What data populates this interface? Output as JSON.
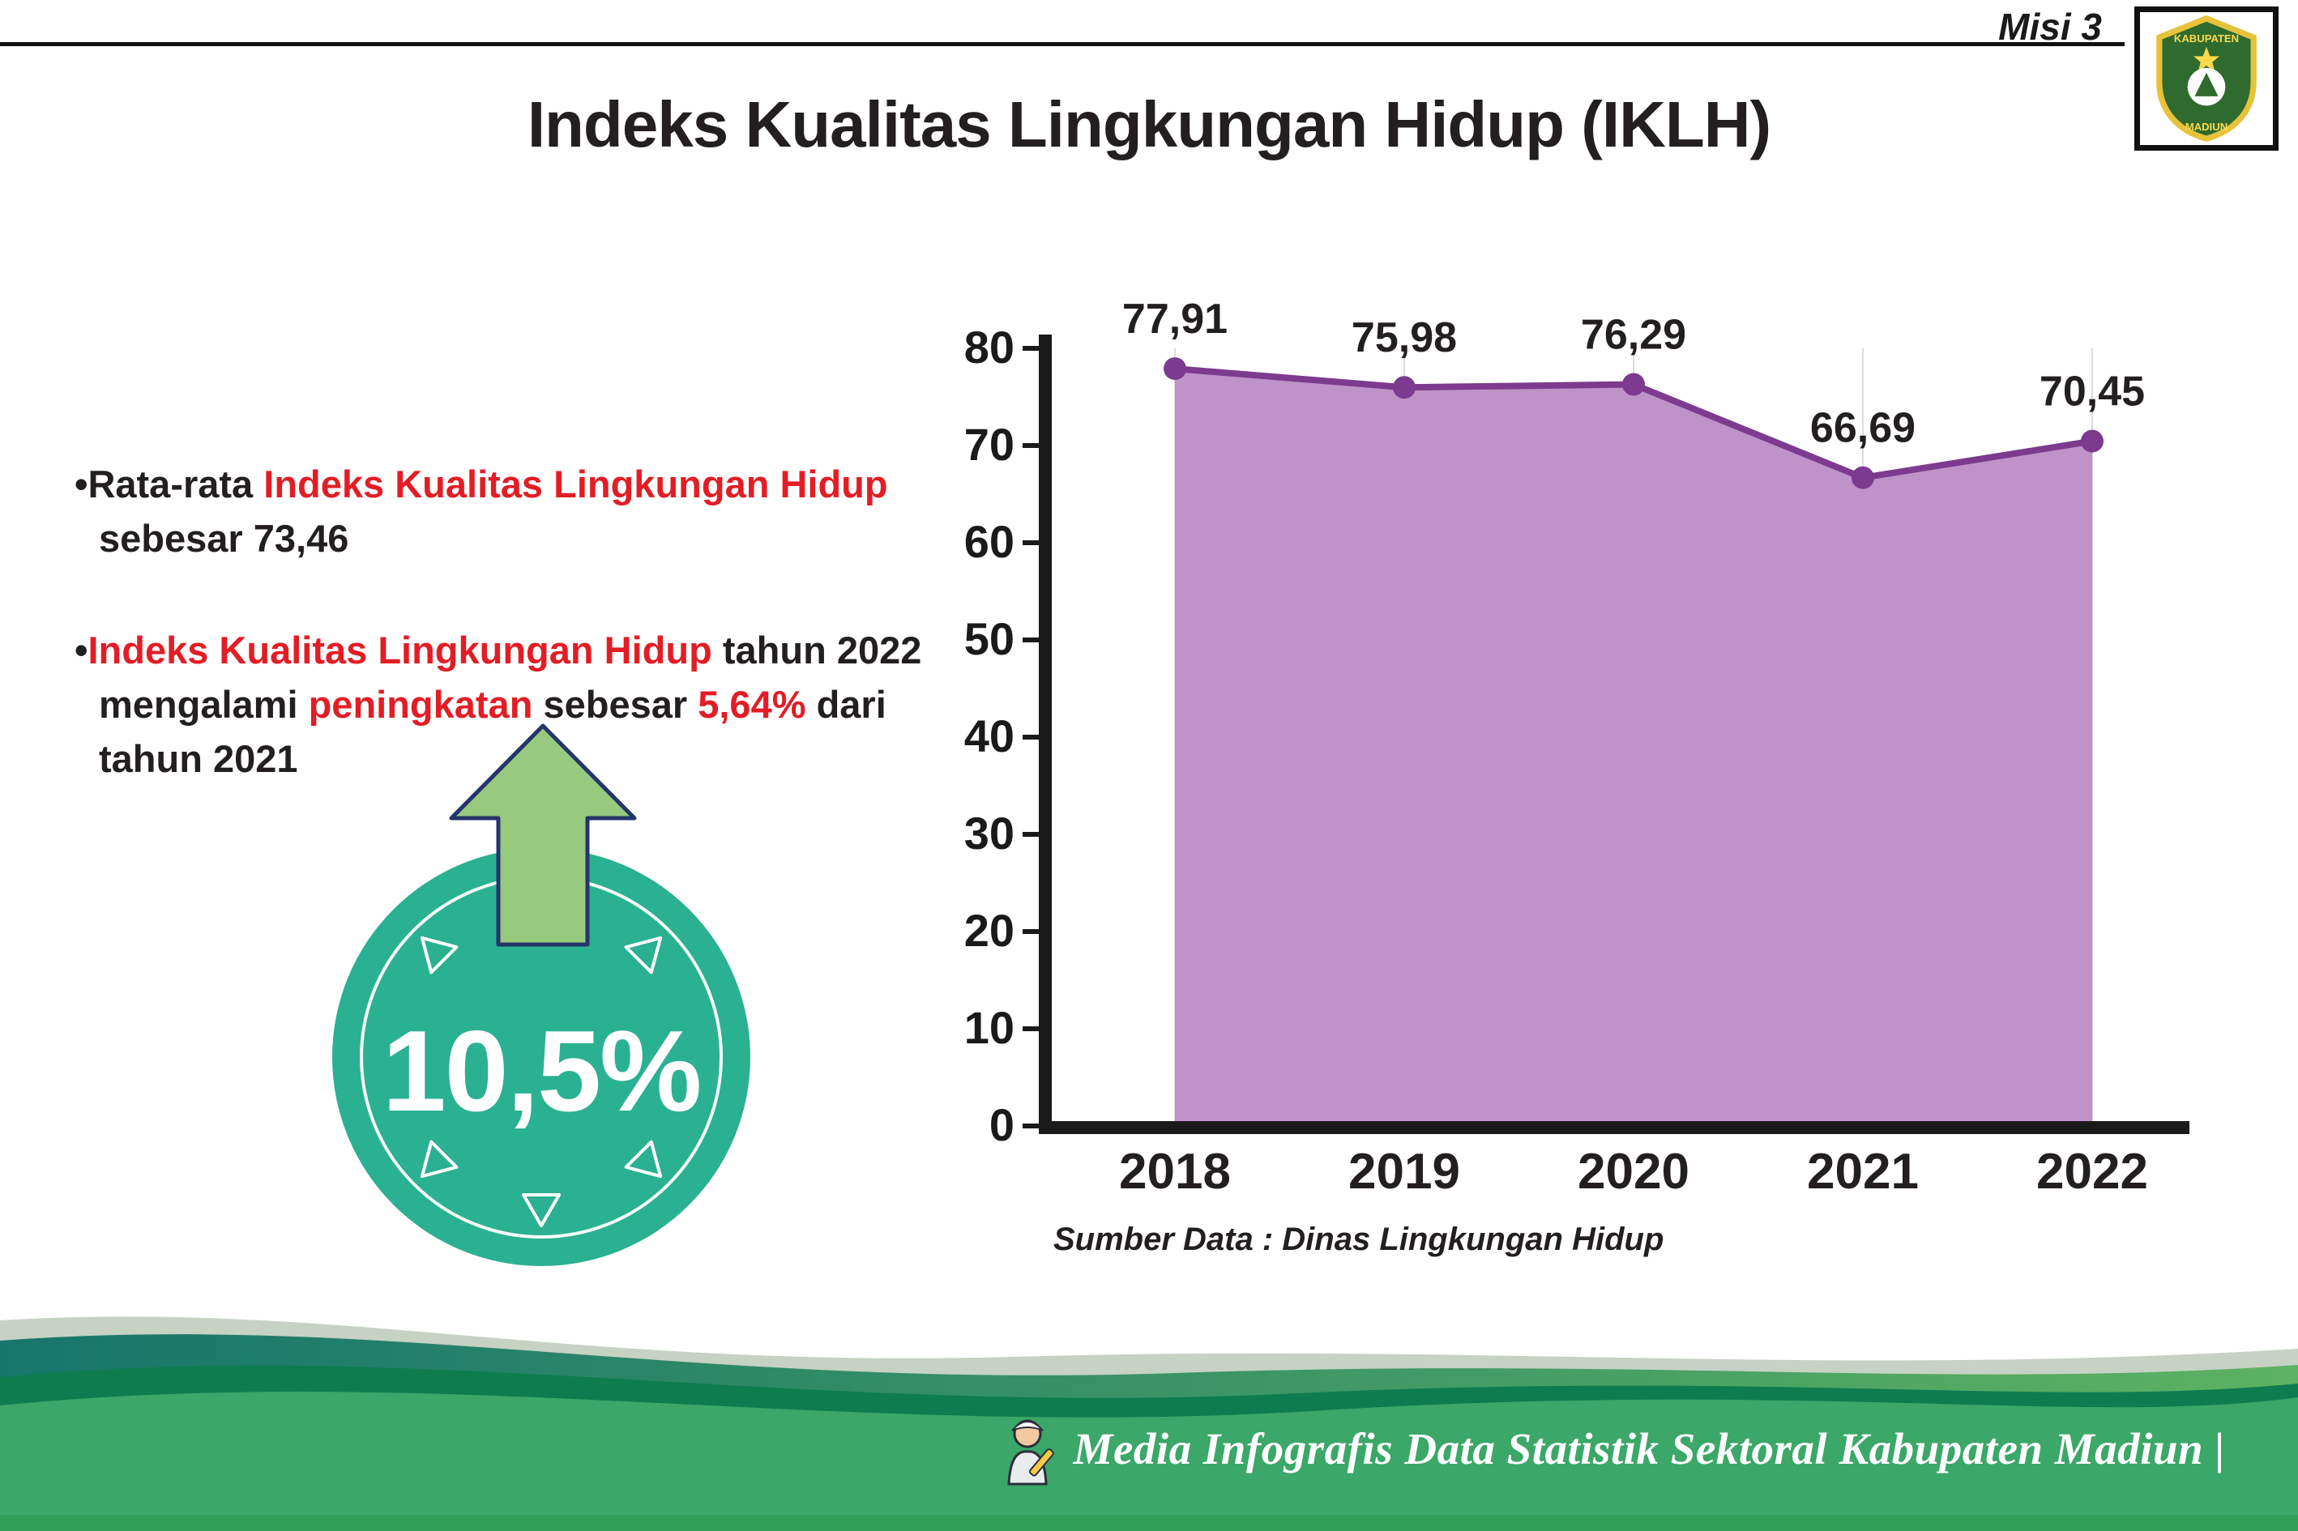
{
  "header": {
    "misi": "Misi 3",
    "title": "Indeks Kualitas Lingkungan Hidup (IKLH)",
    "logo": {
      "top_text": "KABUPATEN",
      "bottom_text": "MADIUN"
    }
  },
  "bullet1": {
    "part1": "•Rata-rata ",
    "part2_red": "Indeks Kualitas Lingkungan Hidup",
    "part3": "sebesar 73,46"
  },
  "bullet2": {
    "part1": "•",
    "part2_red": "Indeks Kualitas Lingkungan Hidup",
    "part3": " tahun 2022",
    "part4": "mengalami ",
    "part5_red": "peningkatan",
    "part6": " sebesar ",
    "part7_red": "5,64%",
    "part8": " dari",
    "part9": "tahun 2021"
  },
  "badge": {
    "value": "10,5%"
  },
  "chart_data": {
    "type": "area",
    "title": "Indeks Kualitas Lingkungan Hidup (IKLH)",
    "categories": [
      "2018",
      "2019",
      "2020",
      "2021",
      "2022"
    ],
    "values": [
      77.91,
      75.98,
      76.29,
      66.69,
      70.45
    ],
    "point_labels": [
      "77,91",
      "75,98",
      "76,29",
      "66,69",
      "70,45"
    ],
    "ylim": [
      0,
      80
    ],
    "ytick_step": 10,
    "grid": "vertical-only",
    "legend": "none",
    "fill_color": "#bf92c9",
    "line_color": "#7c3b8f",
    "label_color": "#231f20",
    "axis_color": "#1a1a1a",
    "source_note": "Sumber Data : Dinas Lingkungan Hidup"
  },
  "footer": {
    "caption": "Media Infografis Data Statistik Sektoral Kabupaten Madiun |"
  },
  "colors": {
    "accent_red": "#e21d25",
    "badge_teal": "#2ab191",
    "arrow_green": "#97c97e",
    "footer_green": "#3ba768"
  }
}
